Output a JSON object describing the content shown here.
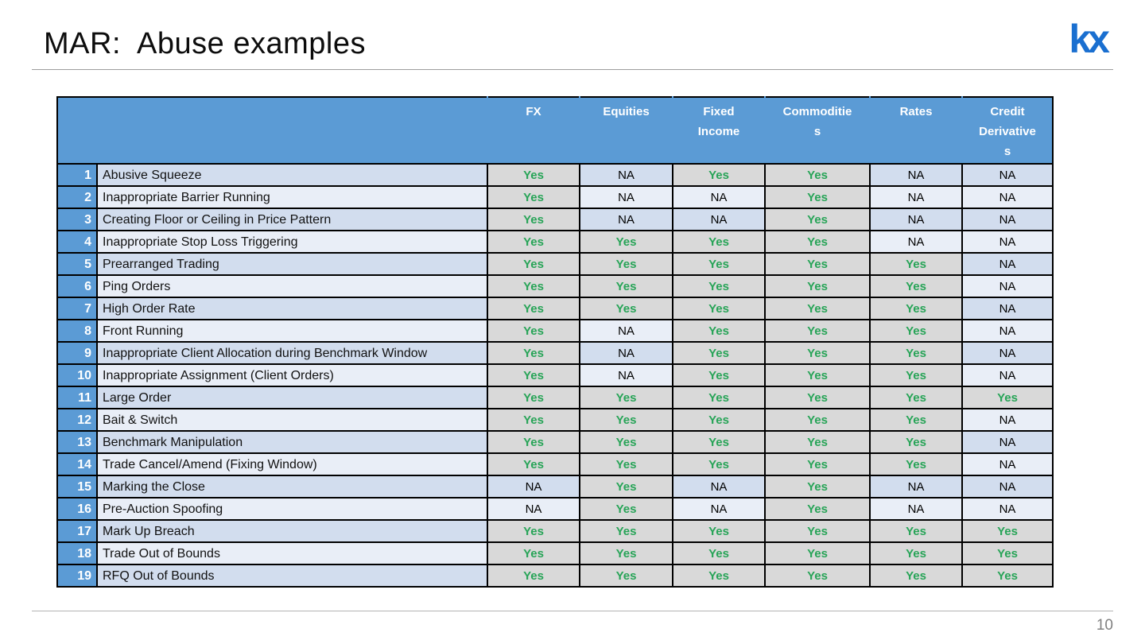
{
  "header": {
    "title": "MAR:  Abuse examples",
    "logo_text": "kx"
  },
  "footer": {
    "page_number": "10"
  },
  "colors": {
    "header_blue": "#5b9bd5",
    "row_band_dark": "#d2ddee",
    "row_band_light": "#e9eef7",
    "yes_cell_gray": "#d9d9d9",
    "yes_text_green": "#27a457",
    "logo_blue": "#1a6fd0",
    "border_black": "#000000",
    "page_number_gray": "#808080"
  },
  "table": {
    "columns": [
      "FX",
      "Equities",
      "Fixed\nIncome",
      "Commoditie\ns",
      "Rates",
      "Credit\nDerivative\ns"
    ],
    "rows": [
      {
        "num": "1",
        "name": "Abusive Squeeze",
        "values": [
          "Yes",
          "NA",
          "Yes",
          "Yes",
          "NA",
          "NA"
        ]
      },
      {
        "num": "2",
        "name": "Inappropriate Barrier Running",
        "values": [
          "Yes",
          "NA",
          "NA",
          "Yes",
          "NA",
          "NA"
        ]
      },
      {
        "num": "3",
        "name": "Creating Floor or Ceiling in Price Pattern",
        "values": [
          "Yes",
          "NA",
          "NA",
          "Yes",
          "NA",
          "NA"
        ]
      },
      {
        "num": "4",
        "name": "Inappropriate Stop Loss Triggering",
        "values": [
          "Yes",
          "Yes",
          "Yes",
          "Yes",
          "NA",
          "NA"
        ]
      },
      {
        "num": "5",
        "name": "Prearranged Trading",
        "values": [
          "Yes",
          "Yes",
          "Yes",
          "Yes",
          "Yes",
          "NA"
        ]
      },
      {
        "num": "6",
        "name": "Ping Orders",
        "values": [
          "Yes",
          "Yes",
          "Yes",
          "Yes",
          "Yes",
          "NA"
        ]
      },
      {
        "num": "7",
        "name": "High Order Rate",
        "values": [
          "Yes",
          "Yes",
          "Yes",
          "Yes",
          "Yes",
          "NA"
        ]
      },
      {
        "num": "8",
        "name": "Front Running",
        "values": [
          "Yes",
          "NA",
          "Yes",
          "Yes",
          "Yes",
          "NA"
        ]
      },
      {
        "num": "9",
        "name": "Inappropriate Client Allocation during Benchmark Window",
        "values": [
          "Yes",
          "NA",
          "Yes",
          "Yes",
          "Yes",
          "NA"
        ]
      },
      {
        "num": "10",
        "name": "Inappropriate Assignment (Client Orders)",
        "values": [
          "Yes",
          "NA",
          "Yes",
          "Yes",
          "Yes",
          "NA"
        ]
      },
      {
        "num": "11",
        "name": "Large Order",
        "values": [
          "Yes",
          "Yes",
          "Yes",
          "Yes",
          "Yes",
          "Yes"
        ]
      },
      {
        "num": "12",
        "name": "Bait & Switch",
        "values": [
          "Yes",
          "Yes",
          "Yes",
          "Yes",
          "Yes",
          "NA"
        ]
      },
      {
        "num": "13",
        "name": "Benchmark Manipulation",
        "values": [
          "Yes",
          "Yes",
          "Yes",
          "Yes",
          "Yes",
          "NA"
        ]
      },
      {
        "num": "14",
        "name": "Trade Cancel/Amend (Fixing Window)",
        "values": [
          "Yes",
          "Yes",
          "Yes",
          "Yes",
          "Yes",
          "NA"
        ]
      },
      {
        "num": "15",
        "name": "Marking the Close",
        "values": [
          "NA",
          "Yes",
          "NA",
          "Yes",
          "NA",
          "NA"
        ]
      },
      {
        "num": "16",
        "name": "Pre-Auction Spoofing",
        "values": [
          "NA",
          "Yes",
          "NA",
          "Yes",
          "NA",
          "NA"
        ]
      },
      {
        "num": "17",
        "name": "Mark Up Breach",
        "values": [
          "Yes",
          "Yes",
          "Yes",
          "Yes",
          "Yes",
          "Yes"
        ]
      },
      {
        "num": "18",
        "name": "Trade Out of Bounds",
        "values": [
          "Yes",
          "Yes",
          "Yes",
          "Yes",
          "Yes",
          "Yes"
        ]
      },
      {
        "num": "19",
        "name": "RFQ Out of Bounds",
        "values": [
          "Yes",
          "Yes",
          "Yes",
          "Yes",
          "Yes",
          "Yes"
        ]
      }
    ]
  }
}
